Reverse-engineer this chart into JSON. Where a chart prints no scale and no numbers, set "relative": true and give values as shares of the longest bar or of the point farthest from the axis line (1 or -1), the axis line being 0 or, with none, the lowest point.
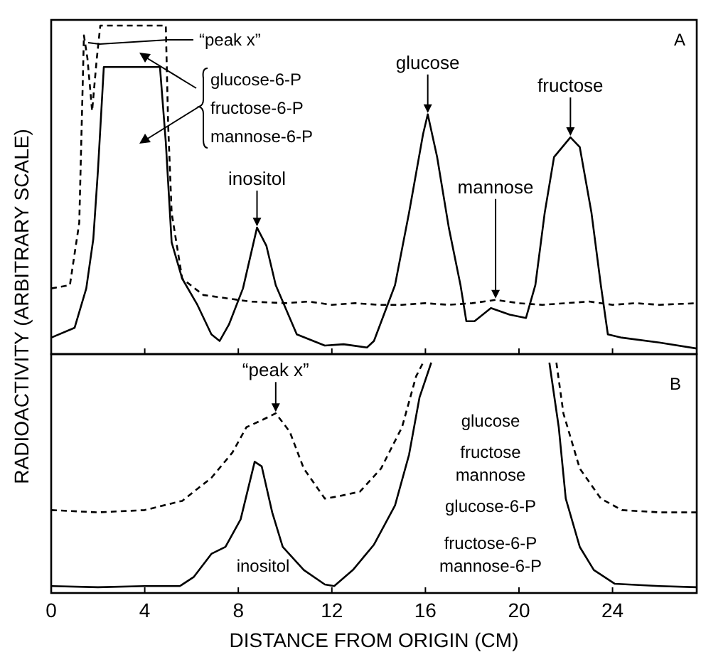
{
  "chart_data": [
    {
      "type": "line",
      "relative": true,
      "ylabel": "RADIOACTIVITY (ARBITRARY SCALE)",
      "xlim": [
        0,
        27.6
      ],
      "xticks": [
        0,
        4,
        8,
        12,
        16,
        20,
        24
      ],
      "tick_labels": false,
      "series": [
        {
          "color": "#000000",
          "line_style": "dashed",
          "x": [
            0,
            0.8,
            1.2,
            1.4,
            1.55,
            1.75,
            1.95,
            2.1,
            3,
            4,
            4.9,
            5.0,
            5.15,
            5.6,
            6.5,
            7.5,
            8.5,
            10,
            11,
            12,
            13,
            14,
            15,
            16,
            17,
            18,
            19,
            20,
            21,
            22,
            23,
            24,
            25,
            26,
            27.6
          ],
          "values": [
            0.2,
            0.21,
            0.4,
            0.97,
            0.9,
            0.74,
            0.9,
            1.0,
            1.0,
            1.0,
            1.0,
            0.7,
            0.43,
            0.23,
            0.18,
            0.17,
            0.16,
            0.155,
            0.16,
            0.15,
            0.155,
            0.15,
            0.15,
            0.155,
            0.15,
            0.155,
            0.165,
            0.155,
            0.15,
            0.155,
            0.16,
            0.15,
            0.155,
            0.15,
            0.155
          ]
        },
        {
          "color": "#000000",
          "line_style": "solid",
          "x": [
            0,
            1,
            1.5,
            1.8,
            2.0,
            2.25,
            3,
            4,
            4.65,
            4.9,
            5.15,
            5.6,
            6.25,
            6.85,
            7.2,
            7.6,
            8.2,
            8.8,
            9.2,
            9.6,
            10.5,
            11.7,
            12.5,
            13.5,
            13.8,
            14.7,
            15.3,
            15.9,
            16.1,
            16.5,
            17.0,
            17.5,
            17.75,
            18.1,
            18.8,
            19.6,
            20.3,
            20.7,
            21.1,
            21.5,
            22.2,
            22.6,
            23.1,
            23.5,
            23.8,
            24.4,
            26,
            27.6
          ],
          "values": [
            0.05,
            0.08,
            0.2,
            0.35,
            0.56,
            0.874,
            0.874,
            0.874,
            0.874,
            0.645,
            0.34,
            0.23,
            0.15,
            0.06,
            0.04,
            0.09,
            0.2,
            0.385,
            0.33,
            0.21,
            0.06,
            0.026,
            0.03,
            0.02,
            0.04,
            0.21,
            0.43,
            0.67,
            0.73,
            0.6,
            0.385,
            0.21,
            0.1,
            0.1,
            0.14,
            0.12,
            0.11,
            0.21,
            0.43,
            0.6,
            0.66,
            0.63,
            0.43,
            0.21,
            0.06,
            0.05,
            0.035,
            0.017
          ]
        }
      ],
      "annotations": [
        "A",
        "“peak x”",
        "glucose-6-P",
        "fructose-6-P",
        "mannose-6-P",
        {
          "text": "inositol",
          "x": 8.8,
          "y": 0.385
        },
        {
          "text": "glucose",
          "x": 16.1,
          "y": 0.73
        },
        {
          "text": "fructose",
          "x": 22.2,
          "y": 0.66
        },
        {
          "text": "mannose",
          "x": 19,
          "y": 0.165
        }
      ]
    },
    {
      "type": "line",
      "relative": true,
      "xlabel": "DISTANCE FROM ORIGIN (CM)",
      "xlim": [
        0,
        27.6
      ],
      "xticks": [
        0,
        4,
        8,
        12,
        16,
        20,
        24
      ],
      "series": [
        {
          "color": "#000000",
          "line_style": "dashed",
          "x": [
            0,
            2,
            4,
            5.6,
            6.85,
            7.75,
            8.35,
            9.0,
            9.6,
            10.2,
            10.8,
            11.7,
            12.3,
            13.2,
            14.1,
            15.0,
            15.6,
            15.9,
            19,
            21.6,
            21.9,
            22.6,
            23.5,
            24.4,
            26,
            27.6
          ],
          "values": [
            0.36,
            0.35,
            0.36,
            0.4,
            0.5,
            0.61,
            0.72,
            0.75,
            0.78,
            0.7,
            0.54,
            0.41,
            0.42,
            0.44,
            0.54,
            0.72,
            0.94,
            1,
            null,
            1,
            0.78,
            0.54,
            0.41,
            0.36,
            0.35,
            0.35
          ]
        },
        {
          "color": "#000000",
          "line_style": "solid",
          "x": [
            0,
            2,
            4,
            5.5,
            6.1,
            6.85,
            7.45,
            8.1,
            8.7,
            9.0,
            9.45,
            9.9,
            10.8,
            11.7,
            12.1,
            12.9,
            13.8,
            14.7,
            15.3,
            15.75,
            16.25,
            19,
            21.3,
            21.7,
            22.0,
            22.6,
            23.2,
            24.1,
            26,
            27.6
          ],
          "values": [
            0.03,
            0.025,
            0.03,
            0.03,
            0.07,
            0.17,
            0.2,
            0.32,
            0.57,
            0.55,
            0.35,
            0.2,
            0.1,
            0.037,
            0.03,
            0.1,
            0.21,
            0.38,
            0.6,
            0.85,
            1,
            null,
            1,
            0.72,
            0.41,
            0.2,
            0.1,
            0.04,
            0.03,
            0.025
          ]
        }
      ],
      "annotations": [
        "B",
        {
          "text": "“peak x”",
          "x": 9.6,
          "y": 0.78
        },
        "inositol",
        "glucose",
        "fructose",
        "mannose",
        "glucose-6-P",
        "fructose-6-P",
        "mannose-6-P"
      ]
    }
  ]
}
